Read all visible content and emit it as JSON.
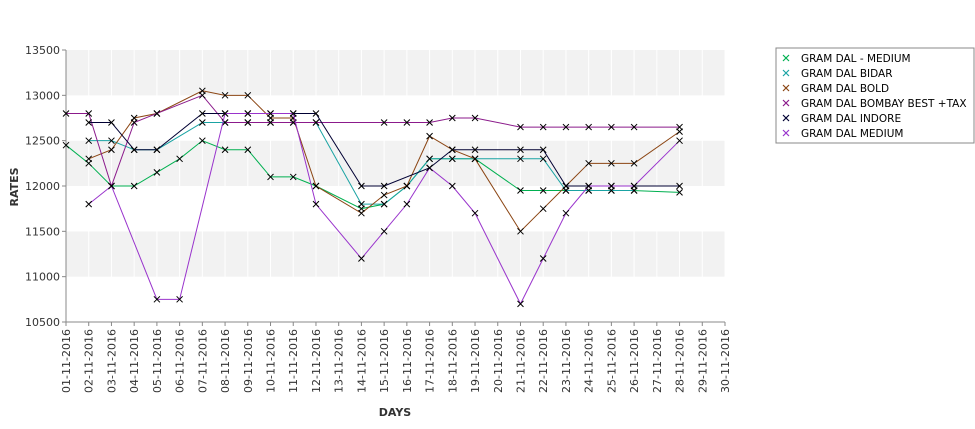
{
  "chart_data": {
    "type": "line",
    "title": "",
    "xlabel": "DAYS",
    "ylabel": "RATES",
    "ylim": [
      10500,
      13500
    ],
    "yticks": [
      10500,
      11000,
      11500,
      12000,
      12500,
      13000,
      13500
    ],
    "grid": "alternating horizontal bands",
    "legend_position": "top-right",
    "categories": [
      "01-11-2016",
      "02-11-2016",
      "03-11-2016",
      "04-11-2016",
      "05-11-2016",
      "06-11-2016",
      "07-11-2016",
      "08-11-2016",
      "09-11-2016",
      "10-11-2016",
      "11-11-2016",
      "12-11-2016",
      "13-11-2016",
      "14-11-2016",
      "15-11-2016",
      "16-11-2016",
      "17-11-2016",
      "18-11-2016",
      "19-11-2016",
      "20-11-2016",
      "21-11-2016",
      "22-11-2016",
      "23-11-2016",
      "24-11-2016",
      "25-11-2016",
      "26-11-2016",
      "27-11-2016",
      "28-11-2016",
      "29-11-2016",
      "30-11-2016"
    ],
    "series": [
      {
        "name": "GRAM DAL - MEDIUM",
        "color": "#00b050",
        "values": [
          12450,
          12250,
          12000,
          12000,
          12150,
          12300,
          12500,
          12400,
          12400,
          12100,
          12100,
          12000,
          null,
          11750,
          11800,
          12000,
          12300,
          12300,
          12300,
          null,
          11950,
          11950,
          11950,
          11950,
          11950,
          11950,
          null,
          11930,
          null,
          null
        ]
      },
      {
        "name": "GRAM DAL BIDAR",
        "color": "#1aa3a3",
        "values": [
          null,
          12500,
          12500,
          12400,
          12400,
          null,
          12700,
          12700,
          12700,
          12700,
          12700,
          12700,
          null,
          11800,
          11800,
          12000,
          12300,
          12300,
          12300,
          null,
          12300,
          12300,
          11950,
          11950,
          11950,
          11950,
          null,
          null,
          null,
          null
        ]
      },
      {
        "name": "GRAM DAL BOLD",
        "color": "#8b4513",
        "values": [
          null,
          12300,
          12400,
          12750,
          12800,
          null,
          13050,
          13000,
          13000,
          12750,
          12750,
          12000,
          null,
          11700,
          11900,
          12000,
          12550,
          12400,
          12300,
          null,
          11500,
          11750,
          12000,
          12250,
          12250,
          12250,
          null,
          12600,
          null,
          null
        ]
      },
      {
        "name": "GRAM DAL BOMBAY BEST +TAX",
        "color": "#8b1a8b",
        "values": [
          12800,
          12800,
          12000,
          12700,
          12800,
          null,
          13000,
          12700,
          12700,
          12700,
          12700,
          12700,
          null,
          null,
          12700,
          12700,
          12700,
          12750,
          12750,
          null,
          12650,
          12650,
          12650,
          12650,
          12650,
          12650,
          null,
          12650,
          null,
          null
        ]
      },
      {
        "name": "GRAM DAL INDORE",
        "color": "#000033",
        "values": [
          null,
          12700,
          12700,
          12400,
          12400,
          null,
          12800,
          12800,
          12800,
          12800,
          12800,
          12800,
          null,
          12000,
          12000,
          null,
          12200,
          12400,
          12400,
          null,
          12400,
          12400,
          12000,
          12000,
          12000,
          12000,
          null,
          12000,
          null,
          null
        ]
      },
      {
        "name": "GRAM DAL MEDIUM",
        "color": "#9933cc",
        "values": [
          null,
          11800,
          12000,
          null,
          10750,
          10750,
          null,
          12800,
          12800,
          12800,
          12800,
          11800,
          null,
          11200,
          11500,
          11800,
          12200,
          12000,
          11700,
          null,
          10700,
          11200,
          11700,
          12000,
          12000,
          12000,
          null,
          12500,
          null,
          null
        ]
      }
    ]
  }
}
